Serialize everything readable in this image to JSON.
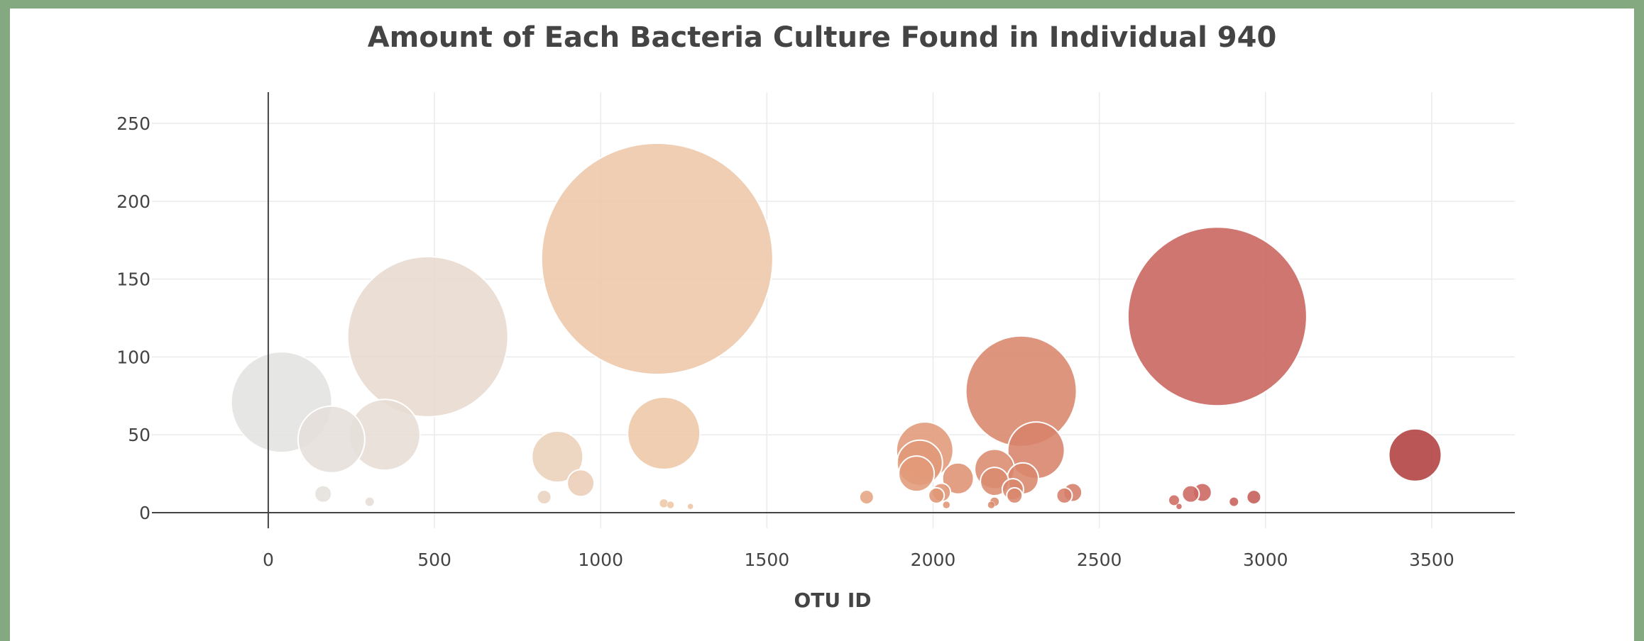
{
  "chart_data": {
    "type": "scatter",
    "subtype": "bubble",
    "title": "Amount of Each Bacteria Culture Found in Individual 940",
    "xlabel": "OTU ID",
    "ylabel": "",
    "xlim": [
      -350,
      3750
    ],
    "ylim": [
      -10,
      270
    ],
    "x_ticks": [
      0,
      500,
      1000,
      1500,
      2000,
      2500,
      3000,
      3500
    ],
    "y_ticks": [
      0,
      50,
      100,
      150,
      200,
      250
    ],
    "grid": true,
    "legend": "none",
    "marker_size": "proportional to value",
    "colorscale": [
      "#e3e3e3",
      "#ead6c6",
      "#efc09a",
      "#dd9070",
      "#cc6660",
      "#b03c3c"
    ],
    "points": [
      {
        "x": 40,
        "y": 71
      },
      {
        "x": 190,
        "y": 47
      },
      {
        "x": 165,
        "y": 12
      },
      {
        "x": 350,
        "y": 50
      },
      {
        "x": 305,
        "y": 7
      },
      {
        "x": 480,
        "y": 113
      },
      {
        "x": 870,
        "y": 36
      },
      {
        "x": 940,
        "y": 19
      },
      {
        "x": 830,
        "y": 10
      },
      {
        "x": 1170,
        "y": 163
      },
      {
        "x": 1190,
        "y": 51
      },
      {
        "x": 1190,
        "y": 6
      },
      {
        "x": 1210,
        "y": 5
      },
      {
        "x": 1270,
        "y": 4
      },
      {
        "x": 1800,
        "y": 10
      },
      {
        "x": 1975,
        "y": 40
      },
      {
        "x": 1960,
        "y": 32
      },
      {
        "x": 1950,
        "y": 25
      },
      {
        "x": 2025,
        "y": 13
      },
      {
        "x": 2010,
        "y": 11
      },
      {
        "x": 2040,
        "y": 5
      },
      {
        "x": 2075,
        "y": 22
      },
      {
        "x": 2265,
        "y": 78
      },
      {
        "x": 2185,
        "y": 28
      },
      {
        "x": 2310,
        "y": 40
      },
      {
        "x": 2185,
        "y": 20
      },
      {
        "x": 2270,
        "y": 22
      },
      {
        "x": 2240,
        "y": 15
      },
      {
        "x": 2245,
        "y": 11
      },
      {
        "x": 2185,
        "y": 7
      },
      {
        "x": 2175,
        "y": 5
      },
      {
        "x": 2420,
        "y": 13
      },
      {
        "x": 2395,
        "y": 11
      },
      {
        "x": 2855,
        "y": 126
      },
      {
        "x": 2775,
        "y": 12
      },
      {
        "x": 2810,
        "y": 13
      },
      {
        "x": 2725,
        "y": 8
      },
      {
        "x": 2740,
        "y": 4
      },
      {
        "x": 2905,
        "y": 7
      },
      {
        "x": 2965,
        "y": 10
      },
      {
        "x": 3450,
        "y": 37
      }
    ]
  }
}
